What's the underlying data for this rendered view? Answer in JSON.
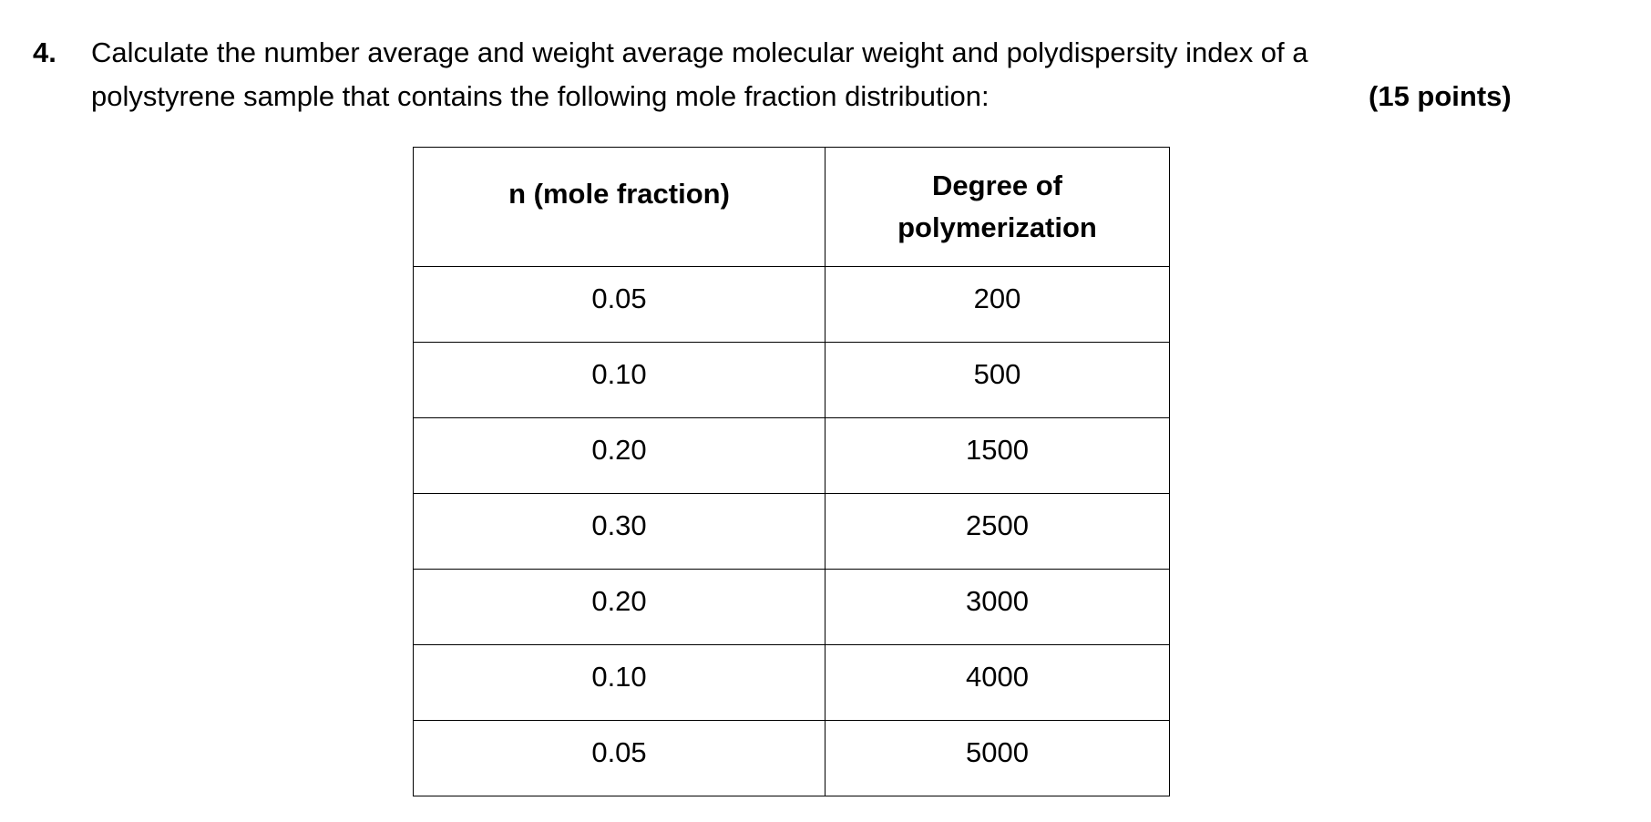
{
  "question": {
    "number": "4.",
    "line1": "Calculate the number average and weight average molecular weight and polydispersity index of a",
    "line2": "polystyrene  sample that contains the following mole fraction distribution:",
    "points": "(15 points)"
  },
  "table": {
    "headers": {
      "mole_fraction": "n (mole fraction)",
      "degree_line1": "Degree of",
      "degree_line2": "polymerization"
    },
    "rows": [
      {
        "n": "0.05",
        "dp": "200"
      },
      {
        "n": "0.10",
        "dp": "500"
      },
      {
        "n": "0.20",
        "dp": "1500"
      },
      {
        "n": "0.30",
        "dp": "2500"
      },
      {
        "n": "0.20",
        "dp": "3000"
      },
      {
        "n": "0.10",
        "dp": "4000"
      },
      {
        "n": "0.05",
        "dp": "5000"
      }
    ]
  }
}
